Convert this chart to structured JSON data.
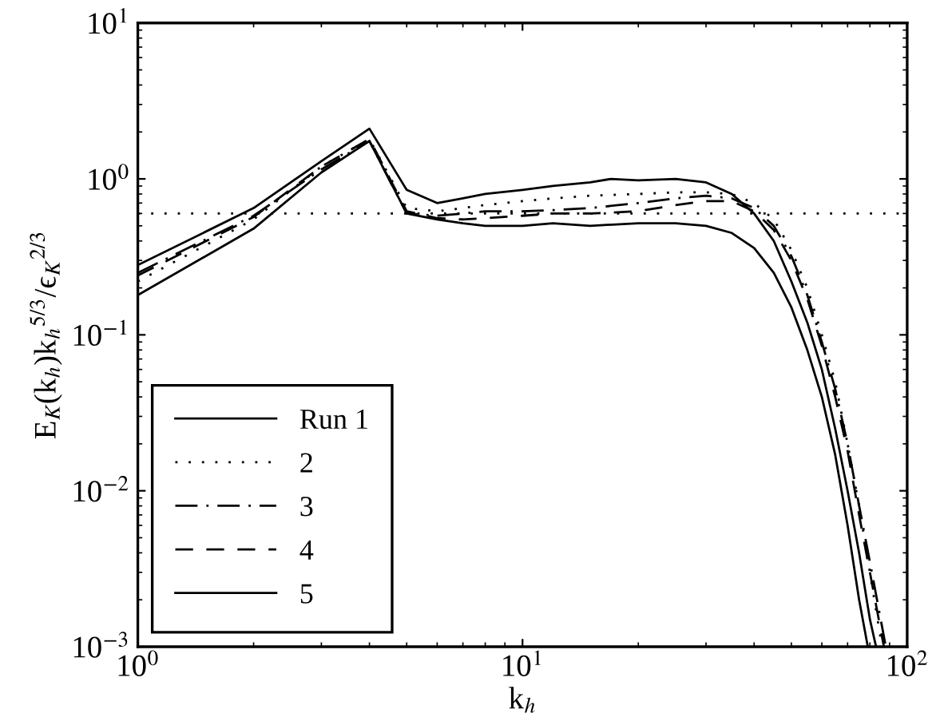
{
  "chart_data": {
    "type": "line",
    "xlabel": "k$_{h}$",
    "ylabel": "E$_{K}$(k$_{h}$)k$_{h}$$^{5/3}$/ϵ$_{K}$$^{2/3}$",
    "xlim": [
      1,
      100
    ],
    "ylim": [
      0.001,
      10
    ],
    "xticks": [
      {
        "value": 1,
        "label": "10$^{0}$"
      },
      {
        "value": 10,
        "label": "10$^{1}$"
      },
      {
        "value": 100,
        "label": "10$^{2}$"
      }
    ],
    "yticks": [
      {
        "value": 0.001,
        "label": "10$^{−3}$"
      },
      {
        "value": 0.01,
        "label": "10$^{−2}$"
      },
      {
        "value": 0.1,
        "label": "10$^{−1}$"
      },
      {
        "value": 1,
        "label": "10$^{0}$"
      },
      {
        "value": 10,
        "label": "10$^{1}$"
      }
    ],
    "log": "xy",
    "grid": false,
    "legend": "bottom left",
    "ref_lines": [
      {
        "axis": "y",
        "value": 0.6,
        "color": "#000000",
        "line_style": "dotted"
      }
    ],
    "series": [
      {
        "name": "Run 1",
        "color": "#000000",
        "line_style": "solid",
        "x": [
          1,
          2,
          3,
          4,
          5,
          6,
          7,
          8,
          10,
          12,
          15,
          17,
          20,
          25,
          30,
          35,
          40,
          45,
          50,
          55,
          60,
          65,
          70,
          75,
          80,
          83
        ],
        "values": [
          0.28,
          0.65,
          1.3,
          2.1,
          0.85,
          0.7,
          0.75,
          0.8,
          0.85,
          0.9,
          0.95,
          1.0,
          0.98,
          1.0,
          0.95,
          0.8,
          0.6,
          0.4,
          0.22,
          0.12,
          0.06,
          0.025,
          0.01,
          0.004,
          0.0015,
          0.001
        ]
      },
      {
        "name": "2",
        "color": "#000000",
        "line_style": "dotted",
        "x": [
          1,
          2,
          3,
          4,
          5,
          6,
          7,
          8,
          10,
          12,
          15,
          20,
          25,
          30,
          35,
          40,
          45,
          50,
          55,
          60,
          65,
          70,
          75,
          80,
          86
        ],
        "values": [
          0.22,
          0.55,
          1.2,
          1.8,
          0.65,
          0.62,
          0.65,
          0.68,
          0.72,
          0.75,
          0.78,
          0.8,
          0.82,
          0.82,
          0.8,
          0.7,
          0.55,
          0.35,
          0.2,
          0.1,
          0.05,
          0.02,
          0.008,
          0.003,
          0.001
        ]
      },
      {
        "name": "3",
        "color": "#000000",
        "line_style": "dashdot",
        "x": [
          1,
          2,
          3,
          4,
          5,
          6,
          7,
          8,
          10,
          12,
          15,
          20,
          25,
          30,
          35,
          40,
          45,
          50,
          55,
          60,
          65,
          70,
          75,
          80,
          88
        ],
        "values": [
          0.25,
          0.58,
          1.15,
          1.75,
          0.6,
          0.58,
          0.6,
          0.62,
          0.62,
          0.63,
          0.65,
          0.7,
          0.75,
          0.78,
          0.75,
          0.65,
          0.5,
          0.32,
          0.18,
          0.09,
          0.045,
          0.02,
          0.008,
          0.0035,
          0.001
        ]
      },
      {
        "name": "4",
        "color": "#000000",
        "line_style": "dashed",
        "x": [
          1,
          2,
          3,
          4,
          5,
          6,
          7,
          8,
          10,
          12,
          15,
          20,
          25,
          30,
          35,
          40,
          45,
          50,
          55,
          60,
          65,
          70,
          75,
          80,
          87
        ],
        "values": [
          0.24,
          0.57,
          1.2,
          1.8,
          0.62,
          0.56,
          0.55,
          0.56,
          0.58,
          0.6,
          0.6,
          0.62,
          0.68,
          0.72,
          0.72,
          0.62,
          0.47,
          0.3,
          0.17,
          0.085,
          0.04,
          0.018,
          0.007,
          0.003,
          0.001
        ]
      },
      {
        "name": "5",
        "color": "#000000",
        "line_style": "solid",
        "x": [
          1,
          2,
          3,
          4,
          5,
          6,
          7,
          8,
          10,
          12,
          15,
          20,
          25,
          30,
          35,
          40,
          45,
          50,
          55,
          60,
          65,
          70,
          75,
          79
        ],
        "values": [
          0.18,
          0.48,
          1.1,
          1.75,
          0.6,
          0.55,
          0.52,
          0.5,
          0.5,
          0.52,
          0.5,
          0.52,
          0.52,
          0.5,
          0.45,
          0.36,
          0.25,
          0.15,
          0.08,
          0.04,
          0.017,
          0.006,
          0.002,
          0.001
        ]
      }
    ]
  }
}
